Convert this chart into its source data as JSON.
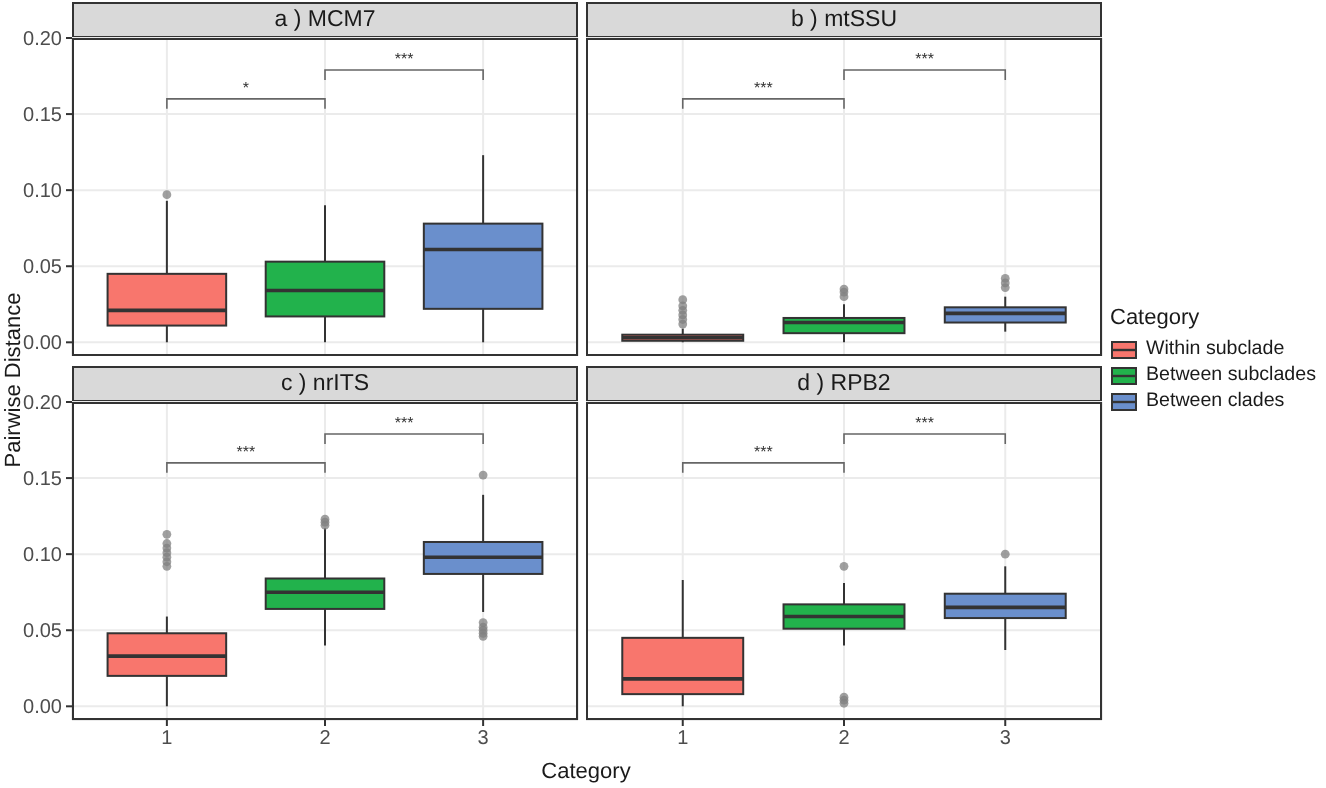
{
  "chart_data": [
    {
      "type": "box",
      "title": "a ) MCM7",
      "ylabel": "Pairwise Distance",
      "categories": [
        "1",
        "2",
        "3"
      ],
      "tick_labels": "y",
      "grid": true,
      "legend": "right",
      "legend_title": "Category",
      "ylim": [
        -0.009,
        0.2
      ],
      "yticks": [
        {
          "value": 0,
          "label": "0.00"
        },
        {
          "value": 0.05,
          "label": "0.05"
        },
        {
          "value": 0.1,
          "label": "0.10"
        },
        {
          "value": 0.15,
          "label": "0.15"
        },
        {
          "value": 0.2,
          "label": "0.20"
        }
      ],
      "series": [
        {
          "name": "Within subclade",
          "color": "#f8766d",
          "boxes": [
            {
              "low": 0,
              "q1": 0.011,
              "median": 0.021,
              "q3": 0.045,
              "high": 0.093,
              "outliers": [
                0.097
              ]
            },
            null,
            null
          ]
        },
        {
          "name": "Between subclades",
          "color": "#22b24c",
          "boxes": [
            null,
            {
              "low": 0,
              "q1": 0.017,
              "median": 0.034,
              "q3": 0.053,
              "high": 0.09
            },
            null
          ]
        },
        {
          "name": "Between clades",
          "color": "#6a8fcc",
          "boxes": [
            null,
            null,
            {
              "low": 0,
              "q1": 0.022,
              "median": 0.061,
              "q3": 0.078,
              "high": 0.123
            }
          ]
        }
      ],
      "annotations": [
        "*",
        "***"
      ]
    },
    {
      "type": "box",
      "title": "b ) mtSSU",
      "categories": [
        "1",
        "2",
        "3"
      ],
      "tick_labels": false,
      "grid": true,
      "ylim": [
        -0.009,
        0.2
      ],
      "yticks": [
        0,
        0.05,
        0.1,
        0.15,
        0.2
      ],
      "series": [
        {
          "color": "#f8766d",
          "boxes": [
            {
              "low": 0,
              "q1": 0.001,
              "median": 0.003,
              "q3": 0.005,
              "high": 0.009,
              "outliers": [
                0.012,
                0.015,
                0.018,
                0.021,
                0.024,
                0.028
              ]
            },
            null,
            null
          ]
        },
        {
          "color": "#22b24c",
          "boxes": [
            null,
            {
              "low": 0,
              "q1": 0.006,
              "median": 0.013,
              "q3": 0.016,
              "high": 0.025,
              "outliers": [
                0.03,
                0.033,
                0.035
              ]
            },
            null
          ]
        },
        {
          "color": "#6a8fcc",
          "boxes": [
            null,
            null,
            {
              "low": 0.007,
              "q1": 0.013,
              "median": 0.019,
              "q3": 0.023,
              "high": 0.03,
              "outliers": [
                0.036,
                0.039,
                0.042
              ]
            }
          ]
        }
      ],
      "annotations": [
        "***",
        "***"
      ]
    },
    {
      "type": "box",
      "title": "c ) nrITS",
      "xlabel": "Category",
      "categories": [
        "1",
        "2",
        "3"
      ],
      "grid": true,
      "ylim": [
        -0.009,
        0.2
      ],
      "yticks": [
        {
          "value": 0,
          "label": "0.00"
        },
        {
          "value": 0.05,
          "label": "0.05"
        },
        {
          "value": 0.1,
          "label": "0.10"
        },
        {
          "value": 0.15,
          "label": "0.15"
        },
        {
          "value": 0.2,
          "label": "0.20"
        }
      ],
      "series": [
        {
          "color": "#f8766d",
          "boxes": [
            {
              "low": 0,
              "q1": 0.02,
              "median": 0.033,
              "q3": 0.048,
              "high": 0.059,
              "outliers": [
                0.092,
                0.095,
                0.098,
                0.101,
                0.104,
                0.107,
                0.113
              ]
            },
            null,
            null
          ]
        },
        {
          "color": "#22b24c",
          "boxes": [
            null,
            {
              "low": 0.04,
              "q1": 0.064,
              "median": 0.075,
              "q3": 0.084,
              "high": 0.117,
              "outliers": [
                0.119,
                0.121,
                0.123
              ]
            },
            null
          ]
        },
        {
          "color": "#6a8fcc",
          "boxes": [
            null,
            null,
            {
              "low": 0.062,
              "q1": 0.087,
              "median": 0.098,
              "q3": 0.108,
              "high": 0.139,
              "outliers": [
                0.046,
                0.048,
                0.05,
                0.052,
                0.055,
                0.152
              ]
            }
          ]
        }
      ],
      "annotations": [
        "***",
        "***"
      ]
    },
    {
      "type": "box",
      "title": "d ) RPB2",
      "categories": [
        "1",
        "2",
        "3"
      ],
      "tick_labels": "x",
      "grid": true,
      "ylim": [
        -0.009,
        0.2
      ],
      "yticks": [
        0,
        0.05,
        0.1,
        0.15,
        0.2
      ],
      "series": [
        {
          "color": "#f8766d",
          "boxes": [
            {
              "low": 0,
              "q1": 0.008,
              "median": 0.018,
              "q3": 0.045,
              "high": 0.083
            },
            null,
            null
          ]
        },
        {
          "color": "#22b24c",
          "boxes": [
            null,
            {
              "low": 0.04,
              "q1": 0.051,
              "median": 0.059,
              "q3": 0.067,
              "high": 0.081,
              "outliers": [
                0.002,
                0.004,
                0.006,
                0.092
              ]
            },
            null
          ]
        },
        {
          "color": "#6a8fcc",
          "boxes": [
            null,
            null,
            {
              "low": 0.037,
              "q1": 0.058,
              "median": 0.065,
              "q3": 0.074,
              "high": 0.092,
              "outliers": [
                0.1
              ]
            }
          ]
        }
      ],
      "annotations": [
        "***",
        "***"
      ]
    }
  ]
}
